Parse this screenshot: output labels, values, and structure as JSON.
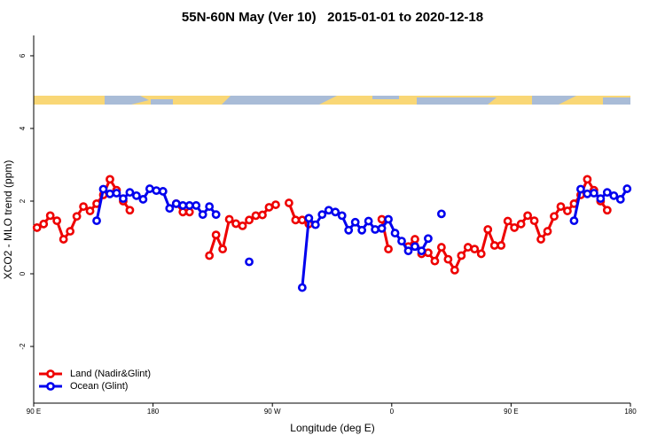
{
  "chart_data": {
    "type": "line",
    "title": "55N-60N May (Ver 10)   2015-01-01 to 2020-12-18",
    "x_label": "Longitude (deg E)",
    "y_label": "XCO2 - MLO trend (ppm)",
    "xlim": [
      90,
      540
    ],
    "ylim": [
      -3.56,
      6.56
    ],
    "xticks": [
      {
        "value": 90,
        "label": "90 E"
      },
      180,
      {
        "value": 270,
        "label": "90 W"
      },
      {
        "value": 360,
        "label": "0"
      },
      {
        "value": 450,
        "label": "90 E"
      },
      {
        "value": 540,
        "label": "180"
      }
    ],
    "yticks": [
      -2,
      0,
      2,
      4,
      6
    ],
    "legend": "bottom-left",
    "x": [
      92.5,
      97.5,
      102.5,
      107.5,
      112.5,
      117.5,
      122.5,
      127.5,
      132.5,
      137.5,
      142.5,
      147.5,
      152.5,
      157.5,
      162.5,
      167.5,
      172.5,
      177.5,
      182.5,
      187.5,
      192.5,
      197.5,
      202.5,
      207.5,
      212.5,
      217.5,
      222.5,
      227.5,
      232.5,
      237.5,
      242.5,
      247.5,
      252.5,
      257.5,
      262.5,
      267.5,
      272.5,
      277.5,
      282.5,
      287.5,
      292.5,
      297.5,
      302.5,
      307.5,
      312.5,
      317.5,
      322.5,
      327.5,
      332.5,
      337.5,
      342.5,
      347.5,
      352.5,
      357.5,
      362.5,
      367.5,
      372.5,
      377.5,
      382.5,
      387.5,
      392.5,
      397.5,
      402.5,
      407.5,
      412.5,
      417.5,
      422.5,
      427.5,
      432.5,
      437.5,
      442.5,
      447.5,
      452.5,
      457.5,
      462.5,
      467.5,
      472.5,
      477.5,
      482.5,
      487.5,
      492.5,
      497.5,
      502.5,
      507.5,
      512.5,
      517.5,
      522.5,
      527.5,
      532.5,
      537.5
    ],
    "series": [
      {
        "name": "Land (Nadir&Glint)",
        "color": "#ee0000",
        "values": [
          1.27,
          1.37,
          1.6,
          1.46,
          0.95,
          1.17,
          1.58,
          1.85,
          1.73,
          1.93,
          2.17,
          2.6,
          2.3,
          2.0,
          1.75,
          null,
          null,
          null,
          null,
          null,
          null,
          1.93,
          1.7,
          1.7,
          null,
          null,
          0.5,
          1.07,
          0.68,
          1.5,
          1.38,
          1.32,
          1.48,
          1.6,
          1.62,
          1.83,
          1.9,
          null,
          1.95,
          1.48,
          1.48,
          1.37,
          null,
          null,
          null,
          null,
          null,
          null,
          null,
          null,
          null,
          null,
          1.5,
          0.68,
          null,
          null,
          0.75,
          0.95,
          0.55,
          0.58,
          0.35,
          0.73,
          0.4,
          0.1,
          0.5,
          0.73,
          0.68,
          0.55,
          1.22,
          0.78,
          0.78,
          1.45,
          1.27,
          1.37,
          1.6,
          1.46,
          0.95,
          1.17,
          1.58,
          1.85,
          1.73,
          1.93,
          2.17,
          2.6,
          2.3,
          2.0,
          1.75,
          null,
          null,
          null
        ]
      },
      {
        "name": "Ocean (Glint)",
        "color": "#0000ee",
        "values": [
          null,
          null,
          null,
          null,
          null,
          null,
          null,
          null,
          null,
          1.46,
          2.33,
          2.2,
          2.22,
          2.07,
          2.24,
          2.15,
          2.05,
          2.34,
          2.29,
          2.27,
          1.8,
          1.93,
          1.88,
          1.88,
          1.88,
          1.63,
          1.85,
          1.63,
          null,
          null,
          null,
          null,
          0.33,
          null,
          null,
          null,
          null,
          null,
          null,
          null,
          -0.38,
          1.53,
          1.35,
          1.63,
          1.75,
          1.7,
          1.6,
          1.2,
          1.42,
          1.2,
          1.45,
          1.22,
          1.25,
          1.5,
          1.12,
          0.9,
          0.63,
          0.75,
          0.63,
          0.97,
          null,
          1.65,
          null,
          null,
          null,
          null,
          null,
          null,
          null,
          null,
          null,
          null,
          null,
          null,
          null,
          null,
          null,
          null,
          null,
          null,
          null,
          1.46,
          2.33,
          2.2,
          2.22,
          2.07,
          2.24,
          2.15,
          2.05,
          2.34
        ]
      }
    ]
  }
}
